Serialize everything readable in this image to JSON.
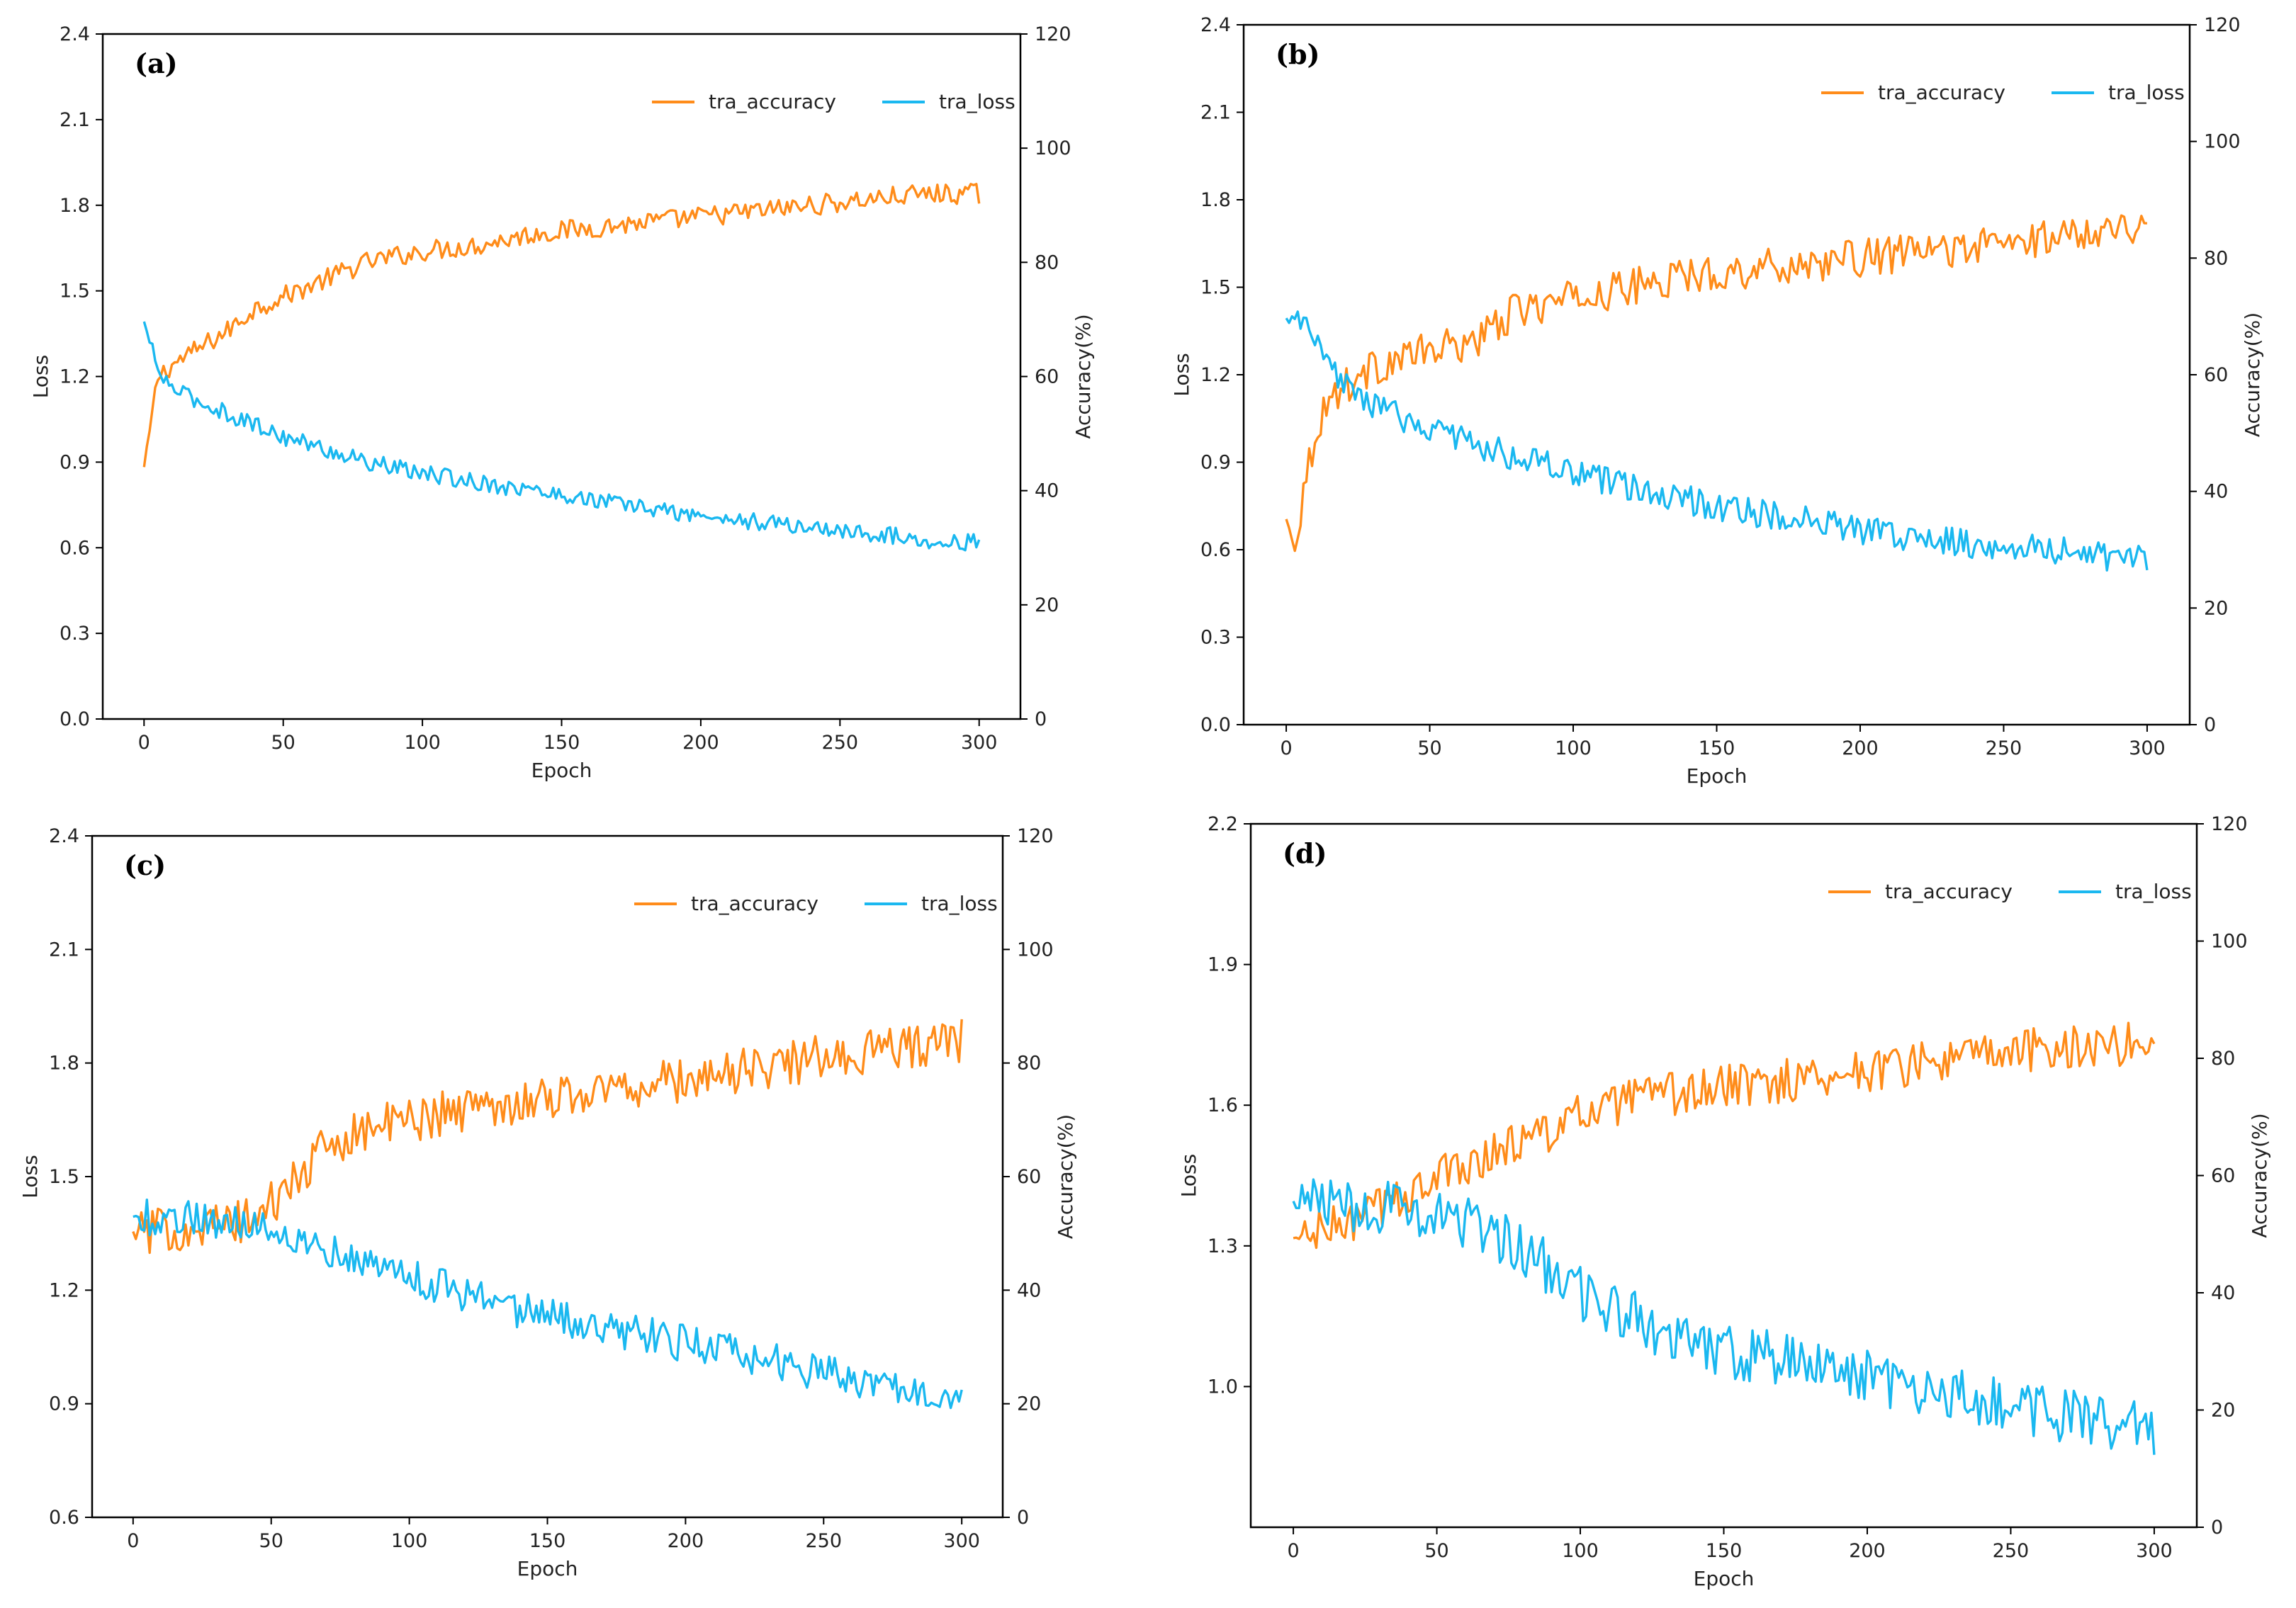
{
  "colors": {
    "accuracy": "#FF8C1A",
    "loss": "#1AB8F0",
    "axis": "#000000",
    "text": "#222222"
  },
  "chart_data": [
    {
      "type": "line",
      "panel": "(a)",
      "xlabel": "Epoch",
      "ylabel_left": "Loss",
      "ylabel_right": "Accuracy(%)",
      "xlim": [
        0,
        300
      ],
      "ylim_left": [
        0,
        2.4
      ],
      "ylim_right": [
        0,
        120
      ],
      "xticks": [
        0,
        50,
        100,
        150,
        200,
        250,
        300
      ],
      "yticks_left": [
        0.0,
        0.3,
        0.6,
        0.9,
        1.2,
        1.5,
        1.8,
        2.1,
        2.4
      ],
      "yticks_right": [
        0,
        20,
        40,
        60,
        80,
        100,
        120
      ],
      "legend": [
        "tra_accuracy",
        "tra_loss"
      ],
      "legend_position": "top-right",
      "series": [
        {
          "name": "tra_accuracy",
          "axis": "right",
          "x": [
            0,
            5,
            10,
            20,
            30,
            40,
            50,
            60,
            70,
            80,
            90,
            100,
            120,
            140,
            160,
            180,
            200,
            220,
            240,
            260,
            280,
            290,
            300
          ],
          "values": [
            44,
            60,
            62,
            65,
            68,
            72,
            74,
            76,
            78,
            80,
            81,
            82,
            83,
            85,
            86,
            87,
            88,
            89,
            90,
            91,
            92,
            92,
            92
          ],
          "noise": 1.8
        },
        {
          "name": "tra_loss",
          "axis": "left",
          "x": [
            0,
            5,
            10,
            20,
            30,
            40,
            50,
            60,
            70,
            80,
            90,
            100,
            120,
            140,
            160,
            180,
            200,
            220,
            240,
            260,
            280,
            290,
            300
          ],
          "values": [
            1.39,
            1.22,
            1.16,
            1.11,
            1.07,
            1.03,
            0.99,
            0.96,
            0.93,
            0.9,
            0.88,
            0.86,
            0.83,
            0.8,
            0.77,
            0.74,
            0.71,
            0.69,
            0.67,
            0.65,
            0.63,
            0.62,
            0.62
          ],
          "noise": 0.03
        }
      ]
    },
    {
      "type": "line",
      "panel": "(b)",
      "xlabel": "Epoch",
      "ylabel_left": "Loss",
      "ylabel_right": "Accuracy(%)",
      "xlim": [
        0,
        300
      ],
      "ylim_left": [
        0,
        2.4
      ],
      "ylim_right": [
        0,
        120
      ],
      "xticks": [
        0,
        50,
        100,
        150,
        200,
        250,
        300
      ],
      "yticks_left": [
        0.0,
        0.3,
        0.6,
        0.9,
        1.2,
        1.5,
        1.8,
        2.1,
        2.4
      ],
      "yticks_right": [
        0,
        20,
        40,
        60,
        80,
        100,
        120
      ],
      "legend": [
        "tra_accuracy",
        "tra_loss"
      ],
      "legend_position": "top-right",
      "series": [
        {
          "name": "tra_accuracy",
          "axis": "right",
          "x": [
            0,
            3,
            6,
            10,
            15,
            20,
            30,
            40,
            50,
            60,
            70,
            80,
            90,
            100,
            120,
            140,
            160,
            180,
            200,
            220,
            240,
            260,
            280,
            300
          ],
          "values": [
            35,
            31,
            40,
            50,
            56,
            58,
            61,
            63,
            64,
            65,
            67,
            71,
            72,
            73,
            75,
            77,
            78,
            79,
            80,
            81,
            82,
            83,
            85,
            86
          ],
          "noise": 3.2
        },
        {
          "name": "tra_loss",
          "axis": "left",
          "x": [
            0,
            5,
            8,
            12,
            20,
            30,
            40,
            50,
            60,
            70,
            80,
            90,
            100,
            120,
            140,
            160,
            180,
            200,
            220,
            240,
            260,
            280,
            300
          ],
          "values": [
            1.39,
            1.38,
            1.36,
            1.26,
            1.17,
            1.1,
            1.05,
            1.02,
            0.98,
            0.95,
            0.92,
            0.89,
            0.86,
            0.81,
            0.77,
            0.73,
            0.7,
            0.67,
            0.64,
            0.62,
            0.61,
            0.58,
            0.57
          ],
          "noise": 0.05
        }
      ]
    },
    {
      "type": "line",
      "panel": "(c)",
      "xlabel": "Epoch",
      "ylabel_left": "Loss",
      "ylabel_right": "Accuracy(%)",
      "xlim": [
        0,
        300
      ],
      "ylim_left": [
        0.6,
        2.4
      ],
      "ylim_right": [
        0,
        120
      ],
      "xticks": [
        0,
        50,
        100,
        150,
        200,
        250,
        300
      ],
      "yticks_left": [
        0.6,
        0.9,
        1.2,
        1.5,
        1.8,
        2.1,
        2.4
      ],
      "yticks_right": [
        0,
        20,
        40,
        60,
        80,
        100,
        120
      ],
      "legend": [
        "tra_accuracy",
        "tra_loss"
      ],
      "legend_position": "top-right",
      "series": [
        {
          "name": "tra_accuracy",
          "axis": "right",
          "x": [
            0,
            20,
            40,
            50,
            60,
            70,
            80,
            100,
            120,
            150,
            200,
            250,
            300
          ],
          "values": [
            50,
            51,
            52,
            55,
            60,
            65,
            68,
            70,
            72,
            74,
            77,
            81,
            84
          ],
          "noise": 4.0
        },
        {
          "name": "tra_loss",
          "axis": "left",
          "x": [
            0,
            20,
            40,
            50,
            60,
            70,
            80,
            100,
            120,
            150,
            200,
            250,
            300
          ],
          "values": [
            1.39,
            1.39,
            1.38,
            1.37,
            1.34,
            1.31,
            1.28,
            1.24,
            1.19,
            1.13,
            1.06,
            0.98,
            0.93
          ],
          "noise": 0.05
        }
      ]
    },
    {
      "type": "line",
      "panel": "(d)",
      "xlabel": "Epoch",
      "ylabel_left": "Loss",
      "ylabel_right": "Accuracy(%)",
      "xlim": [
        0,
        300
      ],
      "ylim_left": [
        0.7,
        2.2
      ],
      "ylim_right": [
        0,
        120
      ],
      "xticks": [
        0,
        50,
        100,
        150,
        200,
        250,
        300
      ],
      "yticks_left": [
        1.0,
        1.3,
        1.6,
        1.9,
        2.2
      ],
      "yticks_right": [
        0,
        20,
        40,
        60,
        80,
        100,
        120
      ],
      "legend": [
        "tra_accuracy",
        "tra_loss"
      ],
      "legend_position": "top-right",
      "series": [
        {
          "name": "tra_accuracy",
          "axis": "right",
          "x": [
            0,
            20,
            40,
            60,
            80,
            100,
            120,
            150,
            200,
            250,
            300
          ],
          "values": [
            49,
            52,
            57,
            62,
            66,
            70,
            73,
            75,
            78,
            81,
            83
          ],
          "noise": 3.8
        },
        {
          "name": "tra_loss",
          "axis": "left",
          "x": [
            0,
            20,
            40,
            50,
            60,
            80,
            100,
            120,
            150,
            200,
            250,
            300
          ],
          "values": [
            1.39,
            1.39,
            1.38,
            1.37,
            1.35,
            1.29,
            1.2,
            1.14,
            1.08,
            1.02,
            0.96,
            0.91
          ],
          "noise": 0.06
        }
      ]
    }
  ]
}
